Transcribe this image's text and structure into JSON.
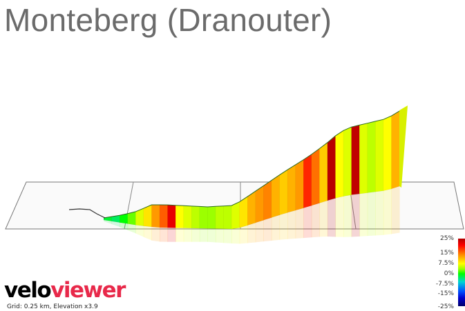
{
  "title": "Monteberg (Dranouter)",
  "chart_data": {
    "type": "area",
    "title": "Monteberg (Dranouter)",
    "subtitle": "Grid: 0.25 km, Elevation x3.9",
    "xlabel": "",
    "ylabel": "",
    "grid": true,
    "grid_spacing_km": 0.25,
    "elevation_exaggeration": 3.9,
    "segments_gradient_pct": [
      -4,
      -5,
      -3,
      -1,
      2,
      4,
      7,
      10,
      18,
      3,
      2,
      1,
      0,
      0,
      1,
      1,
      2,
      4,
      6,
      7,
      8,
      6,
      5,
      6,
      7,
      13,
      9,
      5,
      24,
      3,
      2,
      23,
      2,
      1,
      2,
      3,
      6
    ],
    "color_scale": {
      "labels": [
        "25%",
        "15%",
        "7.5%",
        "0%",
        "-7.5%",
        "-15%",
        "-25%"
      ],
      "colors": [
        "#b00000",
        "#ff0000",
        "#ff8c00",
        "#ffff00",
        "#00ff00",
        "#00d4d4",
        "#0050ff",
        "#0000cc",
        "#00006a"
      ]
    }
  },
  "branding": {
    "logo_part1": "velo",
    "logo_part2": "viewer"
  },
  "footer": "Grid: 0.25 km, Elevation x3.9"
}
